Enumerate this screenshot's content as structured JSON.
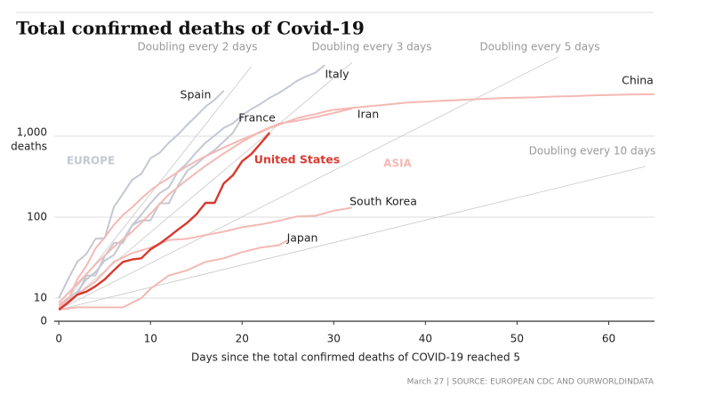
{
  "chart_data": {
    "type": "line",
    "title": "Total confirmed deaths of Covid-19",
    "x_label": "Days since the total confirmed deaths of COVID-19 reached 5",
    "y_unit": "deaths",
    "source": "March 27 | SOURCE: EUROPEAN CDC AND OURWORLDINDATA",
    "annotations": [
      {
        "text": "EUROPE",
        "color": "#c4c8d3"
      },
      {
        "text": "ASIA",
        "color": "#f3b9b4"
      }
    ],
    "yscale": "symlog",
    "linthresh": 10,
    "xlim": [
      -0.5,
      65
    ],
    "xticks": [
      0,
      10,
      20,
      30,
      40,
      50,
      60
    ],
    "ylim": [
      0,
      30000
    ],
    "yticks": [
      0,
      10,
      100,
      {
        "value": 1000,
        "label": "1,000"
      }
    ],
    "grid": true,
    "reference_lines": [
      {
        "label": "Doubling every 2 days",
        "x": [
          0,
          21
        ],
        "values": [
          5,
          7241
        ]
      },
      {
        "label": "Doubling every 3 days",
        "x": [
          0,
          32
        ],
        "values": [
          5,
          8127
        ]
      },
      {
        "label": "Doubling every 5 days",
        "x": [
          0,
          54.5
        ],
        "values": [
          5,
          9555
        ]
      },
      {
        "label": "Doubling every 10 days",
        "x": [
          0,
          64
        ],
        "values": [
          5,
          422
        ]
      }
    ],
    "series": [
      {
        "name": "Spain",
        "color": "#c4c8d3",
        "x": [
          0,
          1,
          2,
          3,
          4,
          5,
          6,
          7,
          8,
          9,
          10,
          11,
          12,
          13,
          14,
          15,
          16,
          17,
          18
        ],
        "values": [
          10,
          17,
          28,
          35,
          54,
          55,
          133,
          195,
          289,
          342,
          533,
          623,
          830,
          1043,
          1375,
          1772,
          2311,
          2808,
          3647
        ]
      },
      {
        "name": "Italy",
        "color": "#c4c8d3",
        "x": [
          0,
          1,
          2,
          3,
          4,
          5,
          6,
          7,
          8,
          9,
          10,
          11,
          12,
          13,
          14,
          15,
          16,
          17,
          18,
          19,
          20,
          21,
          22,
          23,
          24,
          25,
          26,
          27,
          28,
          29
        ],
        "values": [
          7,
          10,
          12,
          17,
          21,
          29,
          34,
          52,
          79,
          107,
          148,
          197,
          233,
          366,
          463,
          631,
          827,
          1016,
          1266,
          1441,
          1809,
          2158,
          2503,
          2978,
          3405,
          4032,
          4825,
          5476,
          6077,
          7503
        ]
      },
      {
        "name": "France",
        "color": "#c4c8d3",
        "x": [
          0,
          1,
          2,
          3,
          4,
          5,
          6,
          7,
          8,
          9,
          10,
          11,
          12,
          13,
          14,
          15,
          16,
          17,
          18,
          19,
          20
        ],
        "values": [
          7,
          9,
          11,
          19,
          19,
          33,
          48,
          48,
          79,
          91,
          91,
          148,
          148,
          244,
          372,
          450,
          562,
          674,
          860,
          1100,
          1700
        ]
      },
      {
        "name": "China",
        "color": "#f3b9b4",
        "x": [
          0,
          1,
          2,
          3,
          4,
          5,
          6,
          7,
          8,
          9,
          10,
          11,
          12,
          13,
          14,
          15,
          16,
          17,
          18,
          19,
          20,
          21,
          22,
          23,
          24,
          25,
          26,
          27,
          28,
          29,
          30,
          32,
          34,
          36,
          38,
          40,
          42,
          44,
          46,
          48,
          50,
          52,
          54,
          56,
          58,
          60,
          62,
          65
        ],
        "values": [
          6,
          9,
          17,
          25,
          41,
          56,
          80,
          106,
          132,
          170,
          213,
          259,
          304,
          362,
          426,
          492,
          565,
          638,
          724,
          813,
          910,
          1016,
          1113,
          1259,
          1380,
          1523,
          1665,
          1770,
          1868,
          2004,
          2118,
          2236,
          2345,
          2460,
          2595,
          2663,
          2744,
          2800,
          2870,
          2943,
          2981,
          3015,
          3085,
          3119,
          3176,
          3226,
          3261,
          3290
        ]
      },
      {
        "name": "Iran",
        "color": "#f3b9b4",
        "x": [
          0,
          2,
          4,
          6,
          8,
          10,
          12,
          14,
          16,
          18,
          20,
          22,
          24,
          26,
          28,
          30,
          32
        ],
        "values": [
          8,
          15,
          26,
          43,
          66,
          110,
          190,
          290,
          430,
          610,
          850,
          1140,
          1430,
          1550,
          1720,
          1930,
          2200
        ]
      },
      {
        "name": "South Korea",
        "color": "#f3b9b4",
        "x": [
          0,
          2,
          4,
          6,
          8,
          10,
          12,
          14,
          16,
          18,
          20,
          22,
          24,
          26,
          28,
          30,
          32
        ],
        "values": [
          7,
          11,
          16,
          28,
          36,
          42,
          52,
          54,
          60,
          66,
          75,
          81,
          90,
          102,
          104,
          120,
          131
        ]
      },
      {
        "name": "Japan",
        "color": "#f3b9b4",
        "x": [
          0,
          2,
          4,
          6,
          7,
          8,
          9,
          10,
          12,
          14,
          16,
          18,
          20,
          22,
          24,
          25
        ],
        "values": [
          5,
          6,
          6,
          6,
          6,
          8,
          10,
          13,
          19,
          22,
          28,
          31,
          37,
          42,
          45,
          52
        ]
      },
      {
        "name": "United States",
        "color": "#d8392f",
        "x": [
          0,
          1,
          2,
          3,
          4,
          5,
          6,
          7,
          8,
          9,
          10,
          11,
          12,
          13,
          14,
          15,
          16,
          17,
          18,
          19,
          20,
          21,
          22,
          23
        ],
        "values": [
          5,
          8,
          11,
          12,
          14,
          17,
          22,
          28,
          30,
          31,
          40,
          47,
          57,
          70,
          85,
          108,
          150,
          150,
          260,
          330,
          490,
          600,
          810,
          1100
        ]
      }
    ]
  }
}
